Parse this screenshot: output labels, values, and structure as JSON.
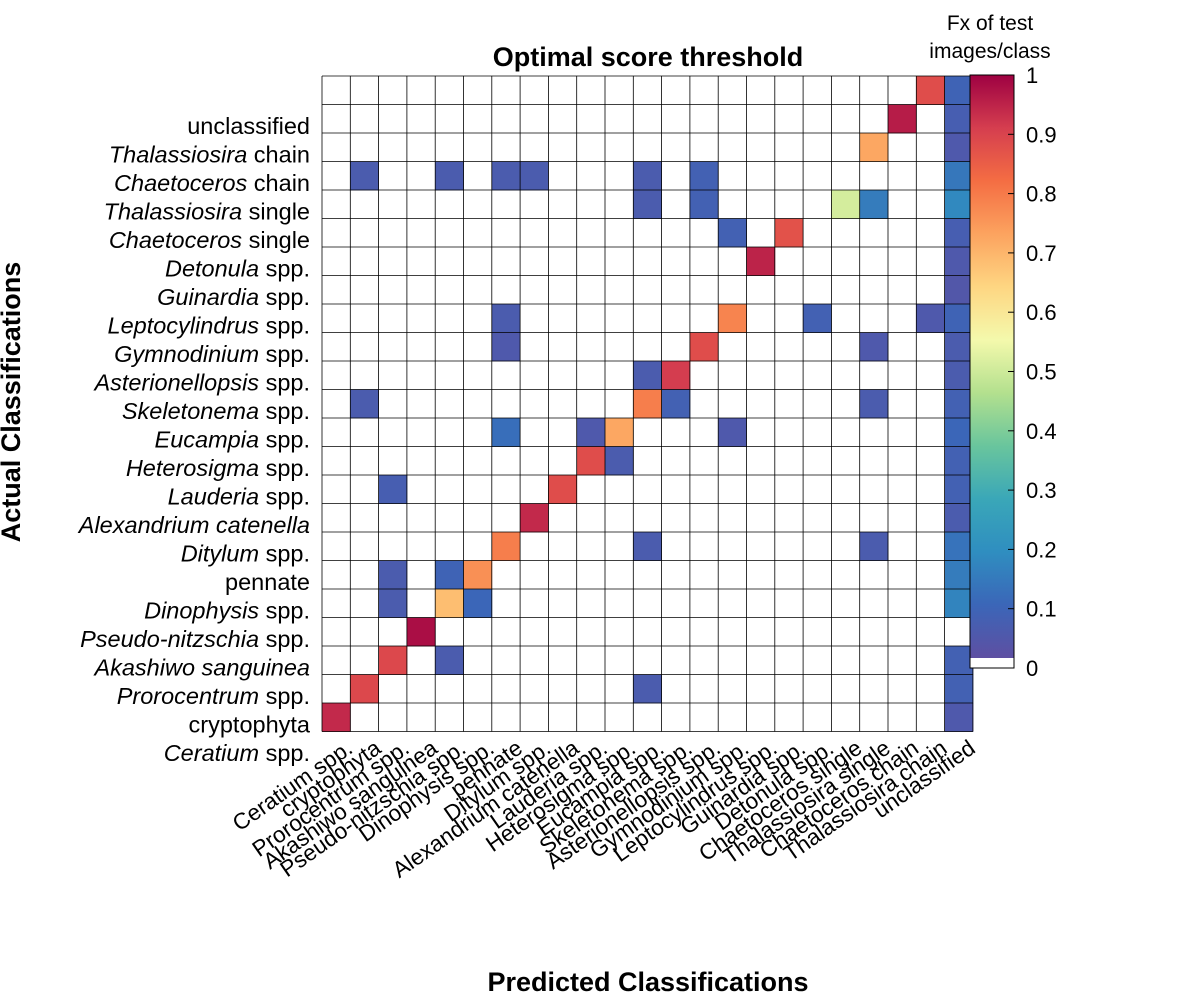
{
  "chart_data": {
    "type": "heatmap",
    "title": "Optimal score threshold",
    "xlabel": "Predicted Classifications",
    "ylabel": "Actual Classifications",
    "colorbar": {
      "title_line1": "Fx of test",
      "title_line2": "images/class",
      "range": [
        0,
        1
      ],
      "ticks": [
        "0",
        "0.1",
        "0.2",
        "0.3",
        "0.4",
        "0.5",
        "0.6",
        "0.7",
        "0.8",
        "0.9",
        "1"
      ]
    },
    "columns": [
      "Ceratium spp.",
      "cryptophyta",
      "Prorocentrum spp.",
      "Akashiwo sanguinea",
      "Pseudo-nitzschia spp.",
      "Dinophysis spp.",
      "pennate",
      "Ditylum spp.",
      "Alexandrium catenella",
      "Lauderia spp.",
      "Heterosigma spp.",
      "Eucampia spp.",
      "Skeletonema spp.",
      "Asterionellopsis spp.",
      "Gymnodinium spp.",
      "Leptocylindrus spp.",
      "Guinardia spp.",
      "Detonula spp.",
      "Chaetoceros single",
      "Thalassiosira single",
      "Chaetoceros chain",
      "Thalassiosira chain",
      "unclassified"
    ],
    "rows": [
      {
        "name": "unclassified",
        "italic": "",
        "rest": "unclassified"
      },
      {
        "name": "Thalassiosira chain",
        "italic": "Thalassiosira",
        "rest": " chain"
      },
      {
        "name": "Chaetoceros chain",
        "italic": "Chaetoceros",
        "rest": " chain"
      },
      {
        "name": "Thalassiosira single",
        "italic": "Thalassiosira",
        "rest": " single"
      },
      {
        "name": "Chaetoceros single",
        "italic": "Chaetoceros",
        "rest": " single"
      },
      {
        "name": "Detonula spp.",
        "italic": "Detonula",
        "rest": " spp."
      },
      {
        "name": "Guinardia spp.",
        "italic": "Guinardia",
        "rest": " spp."
      },
      {
        "name": "Leptocylindrus spp.",
        "italic": "Leptocylindrus",
        "rest": " spp."
      },
      {
        "name": "Gymnodinium spp.",
        "italic": "Gymnodinium",
        "rest": " spp."
      },
      {
        "name": "Asterionellopsis spp.",
        "italic": "Asterionellopsis",
        "rest": " spp."
      },
      {
        "name": "Skeletonema spp.",
        "italic": "Skeletonema",
        "rest": " spp."
      },
      {
        "name": "Eucampia spp.",
        "italic": "Eucampia",
        "rest": " spp."
      },
      {
        "name": "Heterosigma spp.",
        "italic": "Heterosigma",
        "rest": " spp."
      },
      {
        "name": "Lauderia spp.",
        "italic": "Lauderia",
        "rest": " spp."
      },
      {
        "name": "Alexandrium catenella",
        "italic": "Alexandrium catenella",
        "rest": ""
      },
      {
        "name": "Ditylum spp.",
        "italic": "Ditylum",
        "rest": " spp."
      },
      {
        "name": "pennate",
        "italic": "",
        "rest": "pennate"
      },
      {
        "name": "Dinophysis spp.",
        "italic": "Dinophysis",
        "rest": " spp."
      },
      {
        "name": "Pseudo-nitzschia spp.",
        "italic": "Pseudo-nitzschia",
        "rest": " spp."
      },
      {
        "name": "Akashiwo sanguinea",
        "italic": "Akashiwo sanguinea",
        "rest": ""
      },
      {
        "name": "Prorocentrum spp.",
        "italic": "Prorocentrum",
        "rest": " spp."
      },
      {
        "name": "cryptophyta",
        "italic": "",
        "rest": "cryptophyta"
      },
      {
        "name": "Ceratium spp.",
        "italic": "Ceratium",
        "rest": " spp."
      }
    ],
    "values": [
      [
        0,
        0,
        0,
        0,
        0,
        0,
        0,
        0,
        0,
        0,
        0,
        0,
        0,
        0,
        0,
        0,
        0,
        0,
        0,
        0,
        0,
        0.88,
        0.08
      ],
      [
        0,
        0,
        0,
        0,
        0,
        0,
        0,
        0,
        0,
        0,
        0,
        0,
        0,
        0,
        0,
        0,
        0,
        0,
        0,
        0,
        0.96,
        0,
        0.06
      ],
      [
        0,
        0,
        0,
        0,
        0,
        0,
        0,
        0,
        0,
        0,
        0,
        0,
        0,
        0,
        0,
        0,
        0,
        0,
        0,
        0.72,
        0,
        0,
        0.04
      ],
      [
        0,
        0.05,
        0,
        0,
        0.05,
        0,
        0.05,
        0.05,
        0,
        0,
        0,
        0.05,
        0,
        0.07,
        0,
        0,
        0,
        0,
        0,
        0,
        0,
        0,
        0.13
      ],
      [
        0,
        0,
        0,
        0,
        0,
        0,
        0,
        0,
        0,
        0,
        0,
        0.05,
        0,
        0.07,
        0,
        0,
        0,
        0,
        0.5,
        0.14,
        0,
        0,
        0.17
      ],
      [
        0,
        0,
        0,
        0,
        0,
        0,
        0,
        0,
        0,
        0,
        0,
        0,
        0,
        0,
        0.07,
        0,
        0.87,
        0,
        0,
        0,
        0,
        0,
        0.06
      ],
      [
        0,
        0,
        0,
        0,
        0,
        0,
        0,
        0,
        0,
        0,
        0,
        0,
        0,
        0,
        0,
        0.95,
        0,
        0,
        0,
        0,
        0,
        0,
        0.04
      ],
      [
        0,
        0,
        0,
        0,
        0,
        0,
        0,
        0,
        0,
        0,
        0,
        0,
        0,
        0,
        0,
        0,
        0,
        0,
        0,
        0,
        0,
        0,
        0.03
      ],
      [
        0,
        0,
        0,
        0,
        0,
        0,
        0.05,
        0,
        0,
        0,
        0,
        0,
        0,
        0,
        0.78,
        0,
        0,
        0.07,
        0,
        0,
        0,
        0.04,
        0.08
      ],
      [
        0,
        0,
        0,
        0,
        0,
        0,
        0.04,
        0,
        0,
        0,
        0,
        0,
        0,
        0.88,
        0,
        0,
        0,
        0,
        0,
        0.04,
        0,
        0,
        0.05
      ],
      [
        0,
        0,
        0,
        0,
        0,
        0,
        0,
        0,
        0,
        0,
        0,
        0.05,
        0.91,
        0,
        0,
        0,
        0,
        0,
        0,
        0,
        0,
        0,
        0.05
      ],
      [
        0,
        0.05,
        0,
        0,
        0,
        0,
        0,
        0,
        0,
        0,
        0,
        0.79,
        0.07,
        0,
        0,
        0,
        0,
        0,
        0,
        0.05,
        0,
        0,
        0.07
      ],
      [
        0,
        0,
        0,
        0,
        0,
        0,
        0.11,
        0,
        0,
        0.04,
        0.72,
        0,
        0,
        0,
        0.04,
        0,
        0,
        0,
        0,
        0,
        0,
        0,
        0.09
      ],
      [
        0,
        0,
        0,
        0,
        0,
        0,
        0,
        0,
        0,
        0.88,
        0.05,
        0,
        0,
        0,
        0,
        0,
        0,
        0,
        0,
        0,
        0,
        0,
        0.07
      ],
      [
        0,
        0,
        0.06,
        0,
        0,
        0,
        0,
        0,
        0.88,
        0,
        0,
        0,
        0,
        0,
        0,
        0,
        0,
        0,
        0,
        0,
        0,
        0,
        0.07
      ],
      [
        0,
        0,
        0,
        0,
        0,
        0,
        0,
        0.94,
        0,
        0,
        0,
        0,
        0,
        0,
        0,
        0,
        0,
        0,
        0,
        0,
        0,
        0,
        0.05
      ],
      [
        0,
        0,
        0,
        0,
        0,
        0,
        0.79,
        0,
        0,
        0,
        0,
        0.05,
        0,
        0,
        0,
        0,
        0,
        0,
        0,
        0.05,
        0,
        0,
        0.12
      ],
      [
        0,
        0,
        0.05,
        0,
        0.08,
        0.76,
        0,
        0,
        0,
        0,
        0,
        0,
        0,
        0,
        0,
        0,
        0,
        0,
        0,
        0,
        0,
        0,
        0.14
      ],
      [
        0,
        0,
        0.05,
        0,
        0.68,
        0.09,
        0,
        0,
        0,
        0,
        0,
        0,
        0,
        0,
        0,
        0,
        0,
        0,
        0,
        0,
        0,
        0,
        0.16
      ],
      [
        0,
        0,
        0,
        0.98,
        0,
        0,
        0,
        0,
        0,
        0,
        0,
        0,
        0,
        0,
        0,
        0,
        0,
        0,
        0,
        0,
        0,
        0,
        0
      ],
      [
        0,
        0,
        0.89,
        0,
        0.05,
        0,
        0,
        0,
        0,
        0,
        0,
        0,
        0,
        0,
        0,
        0,
        0,
        0,
        0,
        0,
        0,
        0,
        0.07
      ],
      [
        0,
        0.89,
        0,
        0,
        0,
        0,
        0,
        0,
        0,
        0,
        0,
        0.05,
        0,
        0,
        0,
        0,
        0,
        0,
        0,
        0,
        0,
        0,
        0.07
      ],
      [
        0.94,
        0,
        0,
        0,
        0,
        0,
        0,
        0,
        0,
        0,
        0,
        0,
        0,
        0,
        0,
        0,
        0,
        0,
        0,
        0,
        0,
        0,
        0.04
      ]
    ],
    "colors": {
      "0.0": "#ffffff",
      "0.1": "#3b66b8",
      "0.2": "#3aa7b8",
      "0.3": "#69c59d",
      "0.4": "#b3e08e",
      "0.5": "#f4f9ac",
      "0.6": "#fed682",
      "0.7": "#f99054",
      "0.8": "#e85a46",
      "0.9": "#d63b4e",
      "1.0": "#9e0142"
    },
    "colorbar_stops": [
      "#5e4fa2",
      "#3b66b8",
      "#2f8ec0",
      "#3aa7b8",
      "#69c59d",
      "#b3e08e",
      "#f4f9ac",
      "#fed682",
      "#fca35f",
      "#f46d43",
      "#d53e4f",
      "#9e0142"
    ]
  }
}
